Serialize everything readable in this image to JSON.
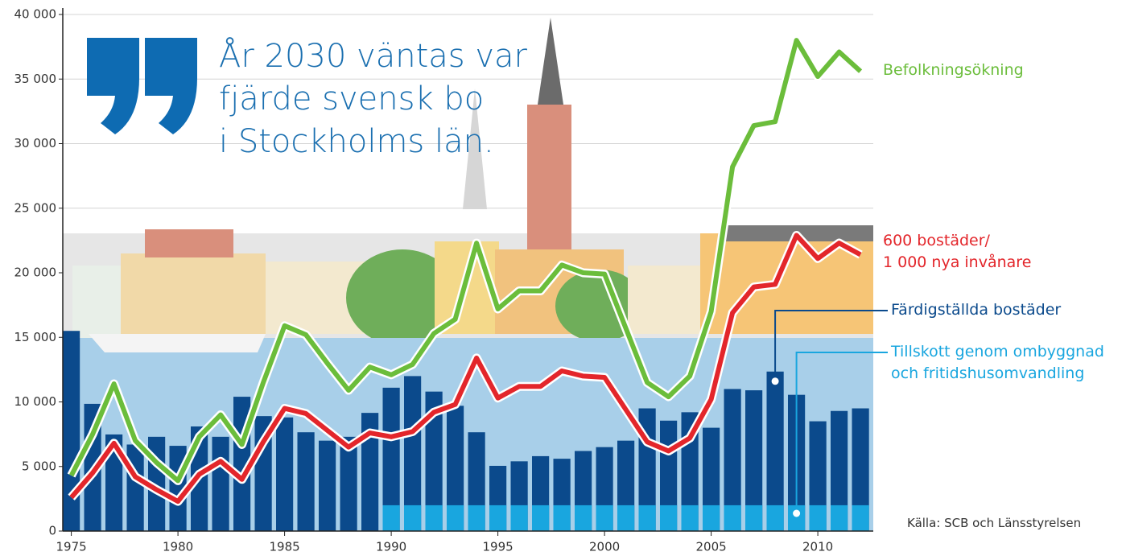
{
  "chart_data": {
    "type": "bar",
    "quote": "År 2030 väntas var\nfjärde svensk bo\ni Stockholms län.",
    "source": "Källa:  SCB och Länsstyrelsen",
    "x": [
      1975,
      1976,
      1977,
      1978,
      1979,
      1980,
      1981,
      1982,
      1983,
      1984,
      1985,
      1986,
      1987,
      1988,
      1989,
      1990,
      1991,
      1992,
      1993,
      1994,
      1995,
      1996,
      1997,
      1998,
      1999,
      2000,
      2001,
      2002,
      2003,
      2004,
      2005,
      2006,
      2007,
      2008,
      2009,
      2010,
      2011,
      2012
    ],
    "series": [
      {
        "name": "Färdigställda bostäder",
        "type": "bar",
        "color": "#0b4a8c",
        "values": [
          15500,
          9850,
          7480,
          6700,
          7300,
          6600,
          8100,
          7300,
          10400,
          8900,
          8800,
          7650,
          7000,
          7300,
          9150,
          11100,
          12000,
          10800,
          9700,
          7650,
          5050,
          5400,
          5800,
          5600,
          6200,
          6500,
          7000,
          9500,
          8550,
          9200,
          8000,
          11000,
          10900,
          12350,
          10550,
          8500,
          9300,
          9500
        ]
      },
      {
        "name": "Tillskott genom ombyggnad\noch fritidshusomvandling",
        "type": "bar",
        "color": "#19a6df",
        "values": [
          null,
          null,
          null,
          null,
          null,
          null,
          null,
          null,
          null,
          null,
          null,
          null,
          null,
          null,
          null,
          2000,
          2000,
          2000,
          2000,
          2000,
          2000,
          2000,
          2000,
          2000,
          2000,
          2000,
          2000,
          2000,
          2000,
          2000,
          2000,
          2000,
          2000,
          2000,
          2000,
          2000,
          2000,
          2000
        ]
      },
      {
        "name": "Befolkningsökning",
        "type": "line",
        "color": "#6bbd3b",
        "values": [
          4300,
          7500,
          11400,
          7000,
          5300,
          3900,
          7300,
          9000,
          6700,
          11500,
          15900,
          15200,
          13000,
          10900,
          12700,
          12100,
          12900,
          15300,
          16400,
          22300,
          17200,
          18600,
          18600,
          20600,
          20000,
          19900,
          15700,
          11500,
          10400,
          12000,
          17000,
          28200,
          31400,
          31700,
          38000,
          35200,
          37100,
          35600
        ]
      },
      {
        "name": "600 bostäder/\n1 000 nya invånare",
        "type": "line",
        "color": "#e3262b",
        "values": [
          2600,
          4500,
          6800,
          4200,
          3200,
          2300,
          4400,
          5400,
          4000,
          6900,
          9500,
          9100,
          7800,
          6500,
          7600,
          7300,
          7700,
          9200,
          9800,
          13400,
          10300,
          11200,
          11200,
          12400,
          12000,
          11900,
          9400,
          6900,
          6200,
          7200,
          10200,
          16900,
          18900,
          19100,
          22900,
          21100,
          22300,
          21400
        ]
      }
    ],
    "xlim": [
      1974.6,
      2012.6
    ],
    "xticks": [
      1975,
      1980,
      1985,
      1990,
      1995,
      2000,
      2005,
      2010
    ],
    "ylim": [
      0,
      40000
    ],
    "yticks": [
      0,
      {
        "value": 5000,
        "label": "5 000"
      },
      {
        "value": 10000,
        "label": "10 000"
      },
      {
        "value": 15000,
        "label": "15 000"
      },
      {
        "value": 20000,
        "label": "20 000"
      },
      {
        "value": 25000,
        "label": "25 000"
      },
      {
        "value": 30000,
        "label": "30 000"
      },
      {
        "value": 35000,
        "label": "35 000"
      },
      {
        "value": 40000,
        "label": "40 000"
      }
    ],
    "grid": true
  }
}
